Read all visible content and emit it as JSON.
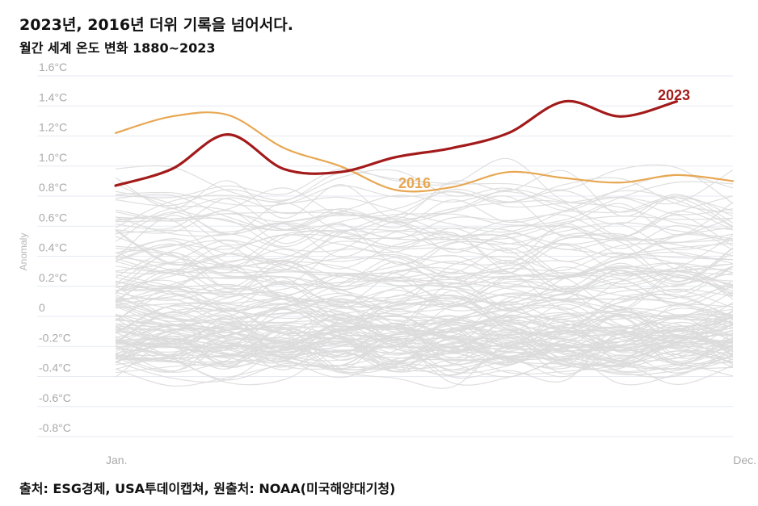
{
  "header": {
    "title": "2023년, 2016년 더위 기록을 넘어서다.",
    "subtitle": "월간 세계 온도 변화 1880~2023"
  },
  "footer": {
    "source": "출처: ESG경제, USA투데이캡쳐, 원출처: NOAA(미국해양대기청)"
  },
  "colors": {
    "highlight_2023": "#a31a1a",
    "highlight_2016": "#e8a752",
    "history": "#dcdcdc",
    "grid": "#e6eaf0"
  },
  "chart_data": {
    "type": "line",
    "title": "2023년, 2016년 더위 기록을 넘어서다.",
    "subtitle": "월간 세계 온도 변화 1880~2023",
    "ylabel": "Anomaly",
    "ylim": [
      -0.8,
      1.6
    ],
    "y_ticks": [
      1.6,
      1.4,
      1.2,
      1.0,
      0.8,
      0.6,
      0.4,
      0.2,
      0,
      -0.2,
      -0.4,
      -0.6,
      -0.8
    ],
    "y_tick_labels": [
      "1.6°C",
      "1.4°C",
      "1.2°C",
      "1.0°C",
      "0.8°C",
      "0.6°C",
      "0.4°C",
      "0.2°C",
      "0",
      "-0.2°C",
      "-0.4°C",
      "-0.6°C",
      "-0.8°C"
    ],
    "x_tick_labels": [
      "Jan.",
      "Dec."
    ],
    "grid": true,
    "series": [
      {
        "name": "2023",
        "values": [
          0.87,
          0.98,
          1.21,
          0.98,
          0.96,
          1.06,
          1.12,
          1.22,
          1.43,
          1.33,
          1.43
        ]
      },
      {
        "name": "2016",
        "values": [
          1.22,
          1.33,
          1.34,
          1.12,
          1.0,
          0.84,
          0.86,
          0.96,
          0.92,
          0.89,
          0.94,
          0.9
        ]
      }
    ],
    "background_series_note": "1880~2022",
    "background_series_count": 143
  }
}
